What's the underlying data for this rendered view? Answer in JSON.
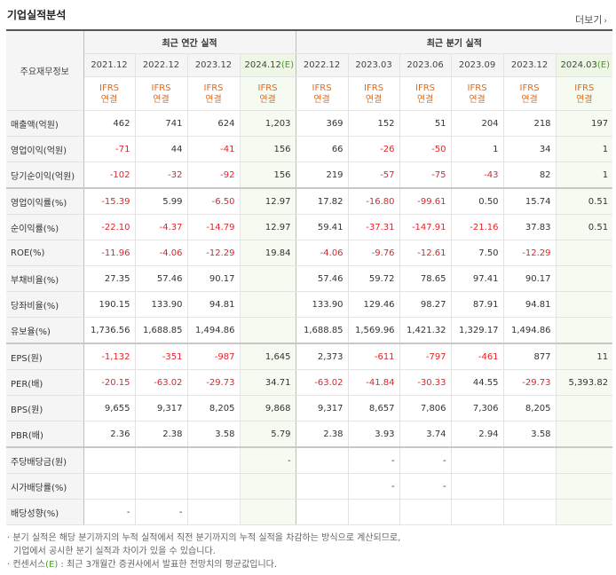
{
  "header": {
    "title": "기업실적분석",
    "more_label": "더보기",
    "more_arrow": "›"
  },
  "table": {
    "corner_label": "주요재무정보",
    "groups": [
      {
        "label": "최근 연간 실적"
      },
      {
        "label": "최근 분기 실적"
      }
    ],
    "periods": [
      {
        "date": "2021.12",
        "est": ""
      },
      {
        "date": "2022.12",
        "est": ""
      },
      {
        "date": "2023.12",
        "est": ""
      },
      {
        "date": "2024.12",
        "est": "(E)"
      },
      {
        "date": "2022.12",
        "est": ""
      },
      {
        "date": "2023.03",
        "est": ""
      },
      {
        "date": "2023.06",
        "est": ""
      },
      {
        "date": "2023.09",
        "est": ""
      },
      {
        "date": "2023.12",
        "est": ""
      },
      {
        "date": "2024.03",
        "est": "(E)"
      }
    ],
    "standard_top": "IFRS",
    "standard_bottom": "연결",
    "rows": [
      {
        "label": "매출액(억원)",
        "values": [
          "462",
          "741",
          "624",
          "1,203",
          "369",
          "152",
          "51",
          "204",
          "218",
          "197"
        ]
      },
      {
        "label": "영업이익(억원)",
        "values": [
          "-71",
          "44",
          "-41",
          "156",
          "66",
          "-26",
          "-50",
          "1",
          "34",
          "1"
        ]
      },
      {
        "label": "당기순이익(억원)",
        "values": [
          "-102",
          "-32",
          "-92",
          "156",
          "219",
          "-57",
          "-75",
          "-43",
          "82",
          "1"
        ]
      },
      {
        "label": "영업이익률(%)",
        "values": [
          "-15.39",
          "5.99",
          "-6.50",
          "12.97",
          "17.82",
          "-16.80",
          "-99.61",
          "0.50",
          "15.74",
          "0.51"
        ]
      },
      {
        "label": "순이익률(%)",
        "values": [
          "-22.10",
          "-4.37",
          "-14.79",
          "12.97",
          "59.41",
          "-37.31",
          "-147.91",
          "-21.16",
          "37.83",
          "0.51"
        ]
      },
      {
        "label": "ROE(%)",
        "values": [
          "-11.96",
          "-4.06",
          "-12.29",
          "19.84",
          "-4.06",
          "-9.76",
          "-12.61",
          "7.50",
          "-12.29",
          ""
        ]
      },
      {
        "label": "부채비율(%)",
        "values": [
          "27.35",
          "57.46",
          "90.17",
          "",
          "57.46",
          "59.72",
          "78.65",
          "97.41",
          "90.17",
          ""
        ]
      },
      {
        "label": "당좌비율(%)",
        "values": [
          "190.15",
          "133.90",
          "94.81",
          "",
          "133.90",
          "129.46",
          "98.27",
          "87.91",
          "94.81",
          ""
        ]
      },
      {
        "label": "유보율(%)",
        "values": [
          "1,736.56",
          "1,688.85",
          "1,494.86",
          "",
          "1,688.85",
          "1,569.96",
          "1,421.32",
          "1,329.17",
          "1,494.86",
          ""
        ]
      },
      {
        "label": "EPS(원)",
        "values": [
          "-1,132",
          "-351",
          "-987",
          "1,645",
          "2,373",
          "-611",
          "-797",
          "-461",
          "877",
          "11"
        ]
      },
      {
        "label": "PER(배)",
        "values": [
          "-20.15",
          "-63.02",
          "-29.73",
          "34.71",
          "-63.02",
          "-41.84",
          "-30.33",
          "44.55",
          "-29.73",
          "5,393.82"
        ]
      },
      {
        "label": "BPS(원)",
        "values": [
          "9,655",
          "9,317",
          "8,205",
          "9,868",
          "9,317",
          "8,657",
          "7,806",
          "7,306",
          "8,205",
          ""
        ]
      },
      {
        "label": "PBR(배)",
        "values": [
          "2.36",
          "2.38",
          "3.58",
          "5.79",
          "2.38",
          "3.93",
          "3.74",
          "2.94",
          "3.58",
          ""
        ]
      },
      {
        "label": "주당배당금(원)",
        "values": [
          "",
          "",
          "",
          "-",
          "",
          "-",
          "-",
          "",
          "",
          ""
        ]
      },
      {
        "label": "시가배당률(%)",
        "values": [
          "",
          "",
          "",
          "",
          "",
          "-",
          "-",
          "",
          "",
          ""
        ]
      },
      {
        "label": "배당성향(%)",
        "values": [
          "-",
          "-",
          "",
          "",
          "",
          "",
          "",
          "",
          "",
          ""
        ]
      }
    ]
  },
  "notes": {
    "line1": "· 분기 실적은 해당 분기까지의 누적 실적에서 직전 분기까지의 누적 실적을 차감하는 방식으로 계산되므로,",
    "line2": "기업에서 공시한 분기 실적과 차이가 있을 수 있습니다.",
    "line3_prefix": "· 컨센서스",
    "line3_est": "(E)",
    "line3_suffix": " : 최근 3개월간 증권사에서 발표한 전망치의 평균값입니다."
  },
  "colors": {
    "negative": "#e0252a",
    "ifrs": "#e06a1a",
    "estimate": "#4a9a2a"
  }
}
